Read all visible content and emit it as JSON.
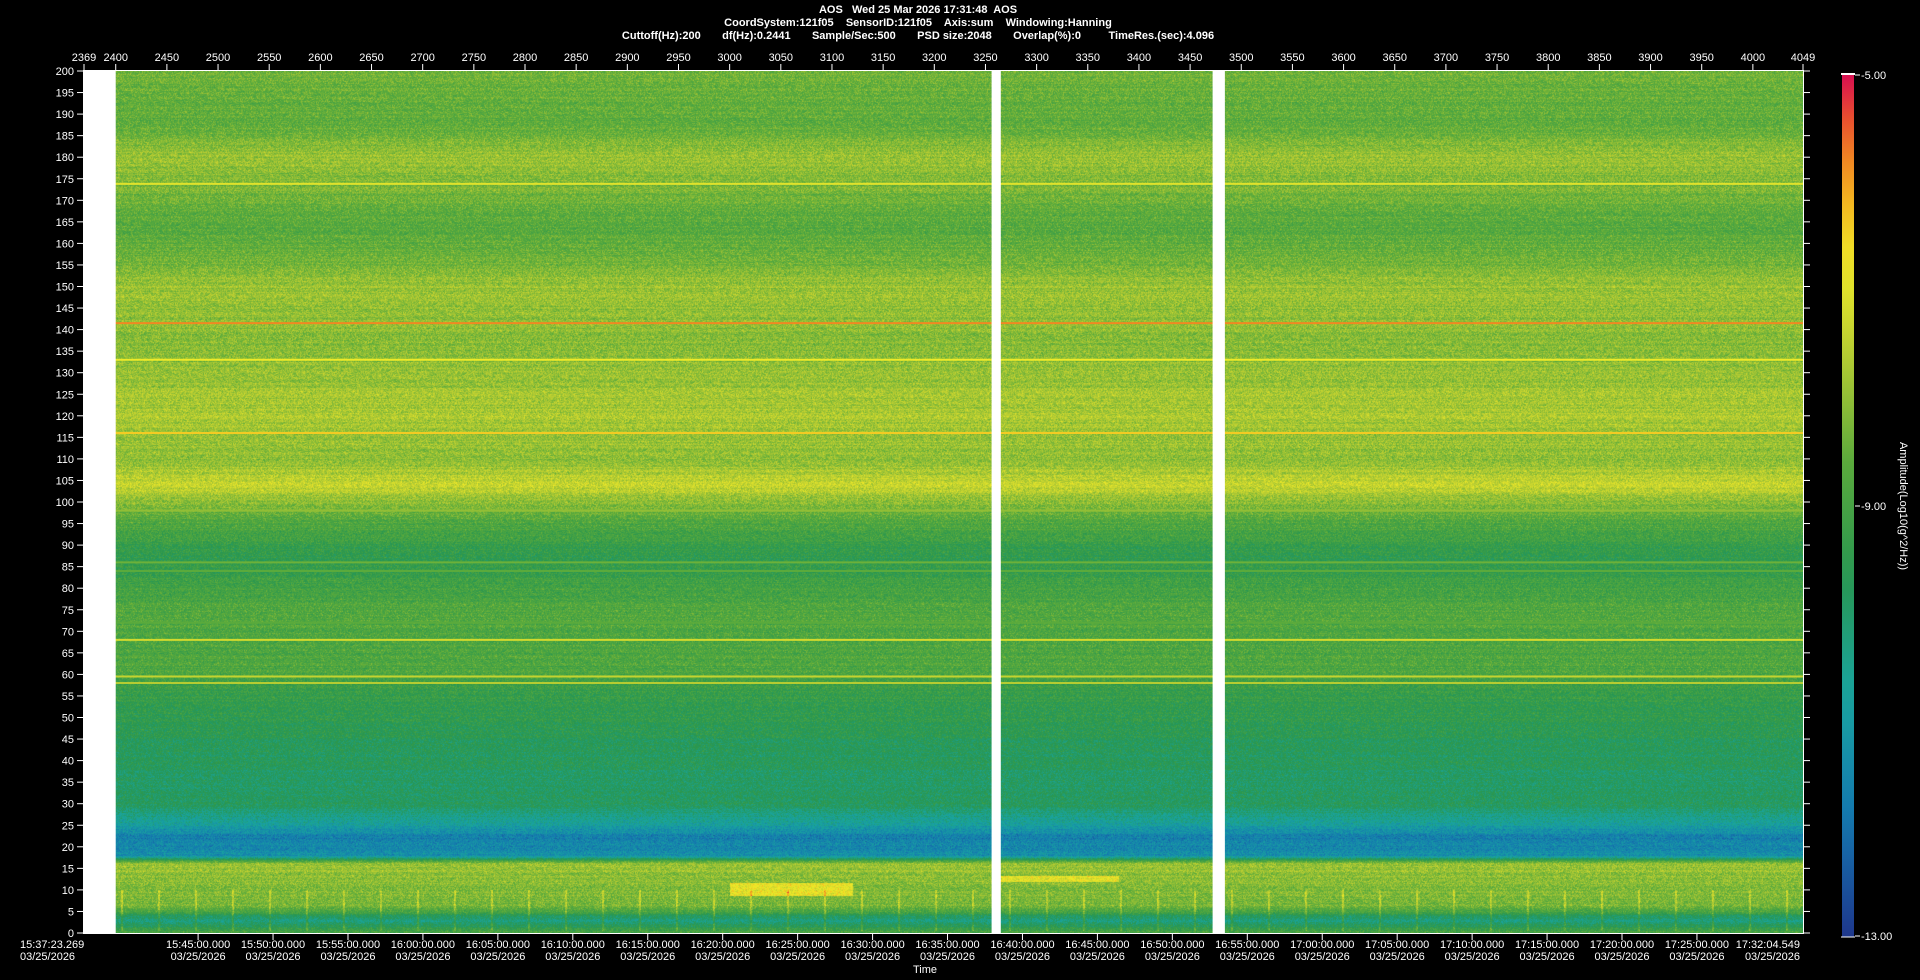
{
  "header": {
    "line1": "AOS   Wed 25 Mar 2026 17:31:48  AOS",
    "line2": "CoordSystem:121f05    SensorID:121f05    Axis:sum    Windowing:Hanning",
    "line3": "Cuttoff(Hz):200       df(Hz):0.2441       Sample/Sec:500       PSD size:2048       Overlap(%):0         TimeRes.(sec):4.096"
  },
  "colorbar": {
    "label": "Amplitude(Log10(g^2/Hz))",
    "tick_labels": [
      "-5.00",
      "-9.00",
      "-13.00"
    ]
  },
  "chart_data": {
    "type": "heatmap",
    "xlabel": "Time",
    "top_axis": {
      "range": [
        2369,
        4049
      ],
      "tick_labels": [
        "2369",
        "2400",
        "2450",
        "2500",
        "2550",
        "2600",
        "2650",
        "2700",
        "2750",
        "2800",
        "2850",
        "2900",
        "2950",
        "3000",
        "3050",
        "3100",
        "3150",
        "3200",
        "3250",
        "3300",
        "3350",
        "3400",
        "3450",
        "3500",
        "3550",
        "3600",
        "3650",
        "3700",
        "3750",
        "3800",
        "3850",
        "3900",
        "3950",
        "4000",
        "4049"
      ]
    },
    "yaxis": {
      "range": [
        0,
        200
      ],
      "tick_labels": [
        "200",
        "195",
        "190",
        "185",
        "180",
        "175",
        "170",
        "165",
        "160",
        "155",
        "150",
        "145",
        "140",
        "135",
        "130",
        "125",
        "120",
        "115",
        "110",
        "105",
        "100",
        "95",
        "90",
        "85",
        "80",
        "75",
        "70",
        "65",
        "60",
        "55",
        "50",
        "45",
        "40",
        "35",
        "30",
        "25",
        "20",
        "15",
        "10",
        "5",
        "0"
      ]
    },
    "time_axis": {
      "start": "15:37:23.269",
      "end": "17:32:04.549",
      "date": "03/25/2026",
      "tick_labels": [
        "15:45:00.000",
        "15:50:00.000",
        "15:55:00.000",
        "16:00:00.000",
        "16:05:00.000",
        "16:10:00.000",
        "16:15:00.000",
        "16:20:00.000",
        "16:25:00.000",
        "16:30:00.000",
        "16:35:00.000",
        "16:40:00.000",
        "16:45:00.000",
        "16:50:00.000",
        "16:55:00.000",
        "17:00:00.000",
        "17:05:00.000",
        "17:10:00.000",
        "17:15:00.000",
        "17:20:00.000",
        "17:25:00.000"
      ]
    },
    "color_range": [
      -13.0,
      -5.0
    ],
    "data_gaps": [
      {
        "from": 2369,
        "to": 2400
      },
      {
        "from": 3256,
        "to": 3265
      },
      {
        "from": 3472,
        "to": 3484
      }
    ],
    "persistent_lines_hz": [
      {
        "freq": 141.5,
        "amplitude": -5.8
      },
      {
        "freq": 116,
        "amplitude": -6.4
      },
      {
        "freq": 133,
        "amplitude": -6.8
      },
      {
        "freq": 173.8,
        "amplitude": -7.0
      },
      {
        "freq": 68,
        "amplitude": -7.2
      },
      {
        "freq": 59.5,
        "amplitude": -7.4
      },
      {
        "freq": 58,
        "amplitude": -7.6
      },
      {
        "freq": 98,
        "amplitude": -8.0
      },
      {
        "freq": 86,
        "amplitude": -8.4
      },
      {
        "freq": 84,
        "amplitude": -8.6
      },
      {
        "freq": 72,
        "amplitude": -8.6
      }
    ],
    "background_profile_hz": [
      [
        0,
        -8.9
      ],
      [
        3,
        -10.4
      ],
      [
        6,
        -8.3
      ],
      [
        12,
        -8.1
      ],
      [
        16,
        -7.8
      ],
      [
        18,
        -11.2
      ],
      [
        22,
        -11.7
      ],
      [
        26,
        -10.6
      ],
      [
        30,
        -9.8
      ],
      [
        35,
        -9.9
      ],
      [
        42,
        -9.8
      ],
      [
        50,
        -9.5
      ],
      [
        57,
        -9.3
      ],
      [
        60,
        -8.9
      ],
      [
        75,
        -8.8
      ],
      [
        88,
        -9.5
      ],
      [
        95,
        -8.8
      ],
      [
        100,
        -8.1
      ],
      [
        104,
        -7.3
      ],
      [
        106,
        -7.6
      ],
      [
        110,
        -8.0
      ],
      [
        120,
        -7.7
      ],
      [
        128,
        -7.9
      ],
      [
        135,
        -8.1
      ],
      [
        145,
        -8.0
      ],
      [
        150,
        -7.9
      ],
      [
        158,
        -8.5
      ],
      [
        165,
        -8.7
      ],
      [
        170,
        -8.4
      ],
      [
        180,
        -7.9
      ],
      [
        188,
        -8.6
      ],
      [
        200,
        -8.4
      ]
    ]
  }
}
